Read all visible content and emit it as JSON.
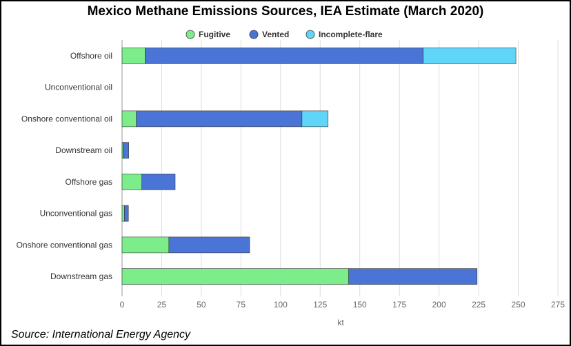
{
  "chart_data": {
    "type": "bar",
    "orientation": "horizontal",
    "stacked": true,
    "title": "Mexico Methane Emissions Sources, IEA Estimate (March 2020)",
    "xlabel": "kt",
    "ylabel": "",
    "xlim": [
      0,
      275
    ],
    "xticks": [
      0,
      25,
      50,
      75,
      100,
      125,
      150,
      175,
      200,
      225,
      250,
      275
    ],
    "grid": true,
    "legend_position": "top-center",
    "categories": [
      "Offshore oil",
      "Unconventional oil",
      "Onshore conventional oil",
      "Downstream oil",
      "Offshore gas",
      "Unconventional gas",
      "Onshore conventional gas",
      "Downstream gas"
    ],
    "series": [
      {
        "name": "Fugitive",
        "color": "#7ded8c",
        "values": [
          14.5,
          0,
          9,
          0.6,
          12.5,
          1.5,
          29.5,
          143
        ]
      },
      {
        "name": "Vented",
        "color": "#4a74d6",
        "values": [
          175.5,
          0,
          104.5,
          3.6,
          21,
          2.5,
          51,
          81
        ]
      },
      {
        "name": "Incomplete-flare",
        "color": "#5fd5f7",
        "values": [
          58.5,
          0,
          16.5,
          0,
          0,
          0,
          0,
          0
        ]
      }
    ]
  },
  "source": "Source: International Energy Agency"
}
